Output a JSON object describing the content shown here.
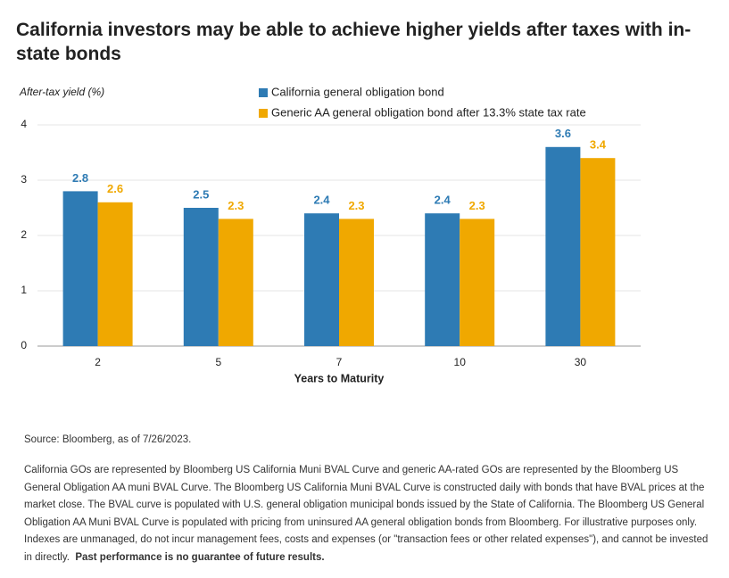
{
  "chart_data": {
    "type": "bar",
    "title": "California investors may be able to achieve higher yields after taxes with in-state bonds",
    "y_label": "After-tax yield (%)",
    "x_label": "Years to Maturity",
    "categories": [
      "2",
      "5",
      "7",
      "10",
      "30"
    ],
    "series": [
      {
        "name": "California general obligation bond",
        "color": "#2e7bb4",
        "values": [
          2.8,
          2.5,
          2.4,
          2.4,
          3.6
        ]
      },
      {
        "name": "Generic AA general obligation bond after 13.3% state tax rate",
        "color": "#f0a800",
        "values": [
          2.6,
          2.3,
          2.3,
          2.3,
          3.4
        ]
      }
    ],
    "ylim": [
      0,
      4
    ],
    "yticks": [
      0,
      1,
      2,
      3,
      4
    ],
    "grid": true
  },
  "source": "Source: Bloomberg, as of 7/26/2023.",
  "notes": {
    "text": "California GOs are represented by Bloomberg US California Muni BVAL Curve and generic AA-rated GOs are represented by the Bloomberg US General Obligation AA muni BVAL Curve. The Bloomberg US California Muni BVAL Curve is constructed daily with bonds that have BVAL prices at the market close. The BVAL curve is populated with U.S. general obligation municipal bonds issued by the State of California. The Bloomberg US General Obligation AA Muni BVAL Curve is populated with pricing from uninsured AA general obligation bonds from Bloomberg. For illustrative purposes only. Indexes  are unmanaged, do not incur management fees, costs and expenses (or \"transaction fees or other related expenses\"), and cannot be invested in directly.",
    "emphasis": "Past performance is no guarantee of future results."
  }
}
